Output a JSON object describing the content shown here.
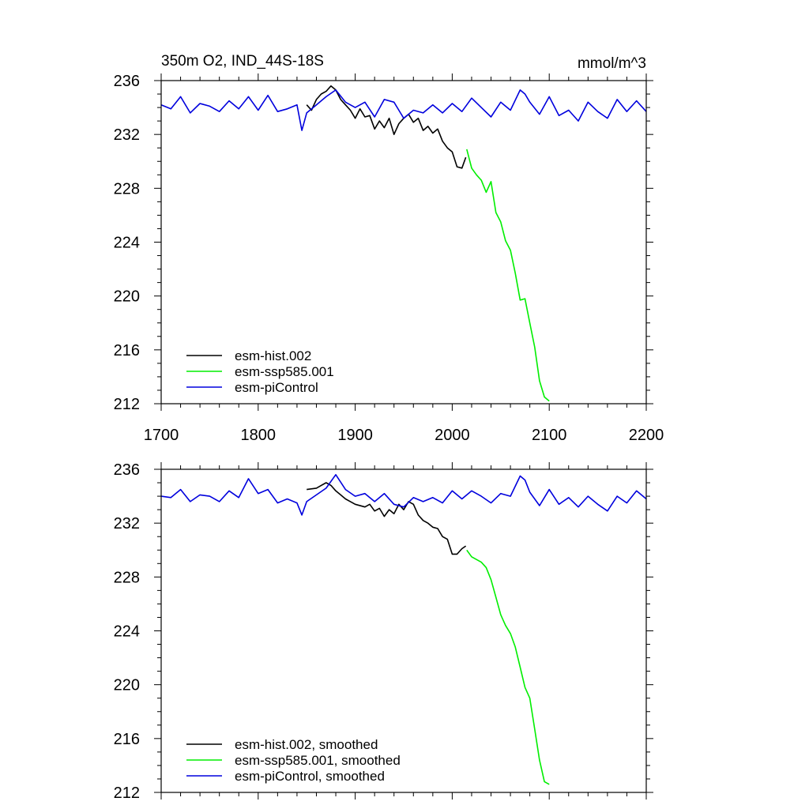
{
  "chart_data": [
    {
      "type": "line",
      "title_left": "350m O2, IND_44S-18S",
      "title_right": "mmol/m^3",
      "xlim": [
        1700,
        2200
      ],
      "ylim": [
        212,
        236
      ],
      "x_ticks": [
        1700,
        1800,
        1900,
        2000,
        2100,
        2200
      ],
      "x_tick_labels": [
        "1700",
        "1800",
        "1900",
        "2000",
        "2100",
        "2200"
      ],
      "y_ticks": [
        212,
        216,
        220,
        224,
        228,
        232,
        236
      ],
      "y_tick_labels": [
        "212",
        "216",
        "220",
        "224",
        "228",
        "232",
        "236"
      ],
      "legend_position": "bottom-left",
      "series": [
        {
          "name": "esm-hist.002",
          "color": "#000000",
          "x": [
            1850,
            1855,
            1860,
            1865,
            1870,
            1875,
            1880,
            1885,
            1890,
            1895,
            1900,
            1905,
            1910,
            1915,
            1920,
            1925,
            1930,
            1935,
            1940,
            1945,
            1950,
            1955,
            1960,
            1965,
            1970,
            1975,
            1980,
            1985,
            1990,
            1995,
            2000,
            2005,
            2010,
            2014
          ],
          "y": [
            234.2,
            233.8,
            234.6,
            235.0,
            235.2,
            235.6,
            235.3,
            234.6,
            234.2,
            233.8,
            233.2,
            233.9,
            233.3,
            233.4,
            232.4,
            233.0,
            232.5,
            233.2,
            232.0,
            232.8,
            233.2,
            233.5,
            232.9,
            233.2,
            232.3,
            232.6,
            232.1,
            232.4,
            231.5,
            231.0,
            230.7,
            229.6,
            229.5,
            230.3
          ]
        },
        {
          "name": "esm-ssp585.001",
          "color": "#00ee00",
          "x": [
            2015,
            2020,
            2025,
            2030,
            2035,
            2040,
            2045,
            2050,
            2055,
            2060,
            2065,
            2070,
            2075,
            2080,
            2085,
            2090,
            2095,
            2100
          ],
          "y": [
            230.9,
            229.5,
            229.0,
            228.6,
            227.7,
            228.5,
            226.2,
            225.5,
            224.1,
            223.4,
            221.7,
            219.7,
            219.8,
            218.0,
            216.2,
            213.7,
            212.5,
            212.2
          ]
        },
        {
          "name": "esm-piControl",
          "color": "#0000dd",
          "x": [
            1700,
            1710,
            1720,
            1730,
            1740,
            1750,
            1760,
            1770,
            1780,
            1790,
            1800,
            1810,
            1820,
            1830,
            1840,
            1845,
            1850,
            1860,
            1870,
            1880,
            1890,
            1900,
            1910,
            1920,
            1930,
            1940,
            1950,
            1960,
            1970,
            1980,
            1990,
            2000,
            2010,
            2020,
            2030,
            2040,
            2050,
            2060,
            2070,
            2075,
            2080,
            2090,
            2100,
            2110,
            2120,
            2130,
            2140,
            2150,
            2160,
            2170,
            2180,
            2190,
            2200
          ],
          "y": [
            234.2,
            233.9,
            234.8,
            233.6,
            234.3,
            234.1,
            233.7,
            234.5,
            233.9,
            234.8,
            233.8,
            234.9,
            233.7,
            233.9,
            234.2,
            232.3,
            233.6,
            234.2,
            234.8,
            235.3,
            234.4,
            234.0,
            234.4,
            233.3,
            234.6,
            234.4,
            233.2,
            233.8,
            233.6,
            234.2,
            233.6,
            234.3,
            233.7,
            234.7,
            234.0,
            233.3,
            234.4,
            233.8,
            235.3,
            235.0,
            234.4,
            233.5,
            234.8,
            233.4,
            233.8,
            233.0,
            234.4,
            233.7,
            233.2,
            234.6,
            233.7,
            234.5,
            233.7
          ]
        }
      ]
    },
    {
      "type": "line",
      "xlim": [
        1700,
        2200
      ],
      "ylim": [
        212,
        236
      ],
      "x_ticks": [
        1700,
        1800,
        1900,
        2000,
        2100,
        2200
      ],
      "y_ticks": [
        212,
        216,
        220,
        224,
        228,
        232,
        236
      ],
      "y_tick_labels": [
        "212",
        "216",
        "220",
        "224",
        "228",
        "232",
        "236"
      ],
      "legend_position": "bottom-left",
      "series": [
        {
          "name": "esm-hist.002, smoothed",
          "color": "#000000",
          "x": [
            1850,
            1860,
            1865,
            1870,
            1875,
            1880,
            1885,
            1890,
            1895,
            1900,
            1910,
            1915,
            1920,
            1925,
            1930,
            1935,
            1940,
            1945,
            1950,
            1955,
            1960,
            1965,
            1970,
            1975,
            1980,
            1985,
            1990,
            1995,
            2000,
            2005,
            2010,
            2014
          ],
          "y": [
            234.5,
            234.6,
            234.8,
            235.0,
            234.8,
            234.4,
            234.1,
            233.8,
            233.6,
            233.4,
            233.2,
            233.4,
            232.9,
            233.1,
            232.5,
            233.0,
            232.7,
            233.4,
            233.0,
            233.6,
            233.4,
            232.6,
            232.2,
            232.0,
            231.7,
            231.6,
            231.0,
            230.8,
            229.7,
            229.7,
            230.1,
            230.3
          ]
        },
        {
          "name": "esm-ssp585.001, smoothed",
          "color": "#00ee00",
          "x": [
            2015,
            2020,
            2025,
            2030,
            2035,
            2040,
            2045,
            2050,
            2055,
            2060,
            2065,
            2070,
            2075,
            2080,
            2085,
            2090,
            2095,
            2100
          ],
          "y": [
            230.0,
            229.5,
            229.3,
            229.1,
            228.7,
            227.8,
            226.5,
            225.2,
            224.4,
            223.8,
            222.8,
            221.3,
            219.8,
            219.0,
            216.7,
            214.4,
            212.8,
            212.6
          ]
        },
        {
          "name": "esm-piControl, smoothed",
          "color": "#0000dd",
          "x": [
            1700,
            1710,
            1720,
            1730,
            1740,
            1750,
            1760,
            1770,
            1780,
            1790,
            1800,
            1810,
            1820,
            1830,
            1840,
            1845,
            1850,
            1860,
            1870,
            1880,
            1890,
            1900,
            1910,
            1920,
            1930,
            1940,
            1950,
            1960,
            1970,
            1980,
            1990,
            2000,
            2010,
            2020,
            2030,
            2040,
            2050,
            2060,
            2070,
            2075,
            2080,
            2090,
            2100,
            2110,
            2120,
            2130,
            2140,
            2150,
            2160,
            2170,
            2180,
            2190,
            2200
          ],
          "y": [
            234.0,
            233.9,
            234.5,
            233.6,
            234.1,
            234.0,
            233.6,
            234.4,
            233.9,
            235.3,
            234.2,
            234.5,
            233.5,
            233.8,
            233.5,
            232.6,
            233.6,
            234.1,
            234.6,
            235.6,
            234.5,
            234.0,
            234.2,
            233.6,
            234.2,
            233.4,
            233.2,
            233.9,
            233.6,
            233.9,
            233.5,
            234.4,
            233.8,
            234.4,
            234.0,
            233.5,
            234.2,
            234.0,
            235.5,
            235.2,
            234.3,
            233.3,
            234.5,
            233.4,
            233.9,
            233.2,
            234.0,
            233.4,
            232.9,
            234.0,
            233.5,
            234.4,
            233.8
          ]
        }
      ]
    }
  ]
}
